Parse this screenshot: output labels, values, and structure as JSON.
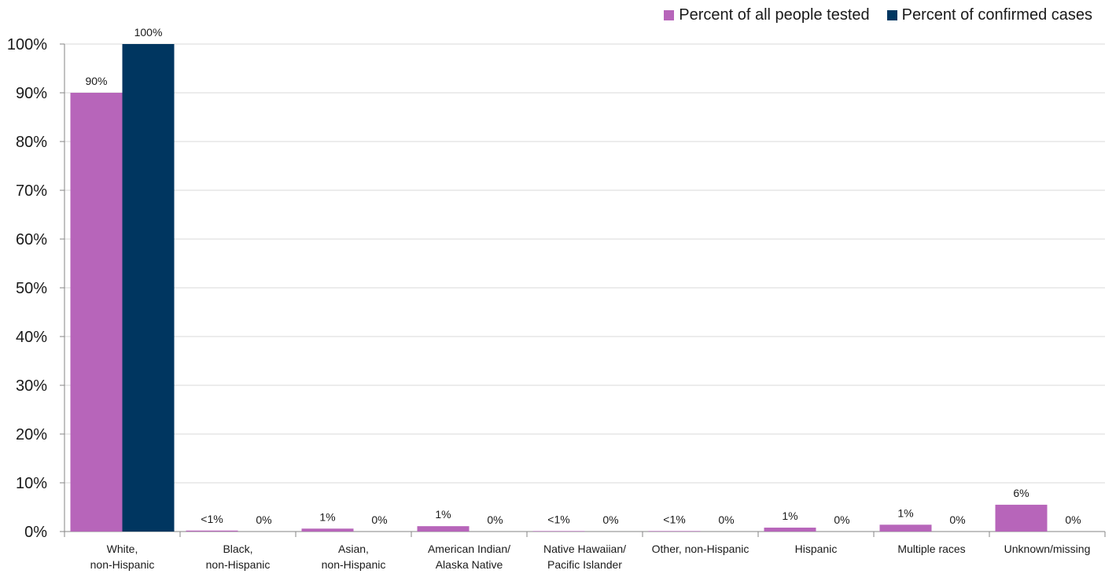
{
  "chart_data": {
    "type": "bar",
    "categories": [
      [
        "White,",
        "non-Hispanic"
      ],
      [
        "Black,",
        "non-Hispanic"
      ],
      [
        "Asian,",
        "non-Hispanic"
      ],
      [
        "American Indian/",
        "Alaska Native"
      ],
      [
        "Native Hawaiian/",
        "Pacific Islander"
      ],
      [
        "Other, non-Hispanic"
      ],
      [
        "Hispanic"
      ],
      [
        "Multiple races"
      ],
      [
        "Unknown/missing"
      ]
    ],
    "series": [
      {
        "name": "Percent of all people tested",
        "color": "#b765ba",
        "values": [
          90,
          0.2,
          0.6,
          1.1,
          0.1,
          0.1,
          0.8,
          1.4,
          5.5
        ],
        "labels": [
          "90%",
          "<1%",
          "1%",
          "1%",
          "<1%",
          "<1%",
          "1%",
          "1%",
          "6%"
        ]
      },
      {
        "name": "Percent of confirmed cases",
        "color": "#003660",
        "values": [
          100,
          0,
          0,
          0,
          0,
          0,
          0,
          0,
          0
        ],
        "labels": [
          "100%",
          "0%",
          "0%",
          "0%",
          "0%",
          "0%",
          "0%",
          "0%",
          "0%"
        ]
      }
    ],
    "y_ticks": [
      "0%",
      "10%",
      "20%",
      "30%",
      "40%",
      "50%",
      "60%",
      "70%",
      "80%",
      "90%",
      "100%"
    ],
    "ylim": [
      0,
      100
    ],
    "grid": true,
    "legend_position": "top-right"
  }
}
